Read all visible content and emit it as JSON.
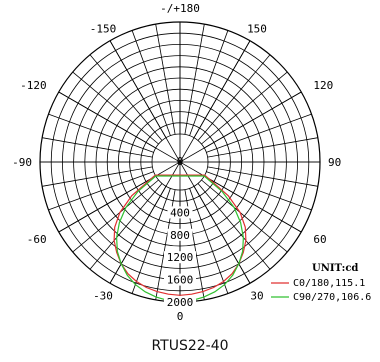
{
  "chart_data": {
    "type": "polar",
    "caption": "RTUS22-40",
    "unit_label": "UNIT:cd",
    "radial_max": 2000,
    "radial_ticks": [
      0,
      400,
      800,
      1200,
      1600,
      2000
    ],
    "angle_ticks": [
      {
        "angle": 180,
        "label": "-/+180"
      },
      {
        "angle": -150,
        "label": "-150"
      },
      {
        "angle": 150,
        "label": "150"
      },
      {
        "angle": -120,
        "label": "-120"
      },
      {
        "angle": 120,
        "label": "120"
      },
      {
        "angle": -90,
        "label": "-90"
      },
      {
        "angle": 90,
        "label": "90"
      },
      {
        "angle": -60,
        "label": "-60"
      },
      {
        "angle": 60,
        "label": "60"
      },
      {
        "angle": -30,
        "label": "-30"
      },
      {
        "angle": 30,
        "label": "30"
      },
      {
        "angle": 0,
        "label": "0"
      }
    ],
    "series": [
      {
        "name": "C0/180,115.1",
        "color": "#e03030",
        "angles": [
          -62,
          -55,
          -50,
          -45,
          -40,
          -35,
          -30,
          -25,
          -20,
          -15,
          -10,
          -5,
          0,
          5,
          10,
          15,
          20,
          25,
          30,
          35,
          40,
          45,
          50,
          55,
          62
        ],
        "values": [
          0,
          550,
          900,
          1150,
          1330,
          1470,
          1600,
          1700,
          1770,
          1820,
          1850,
          1870,
          1880,
          1870,
          1850,
          1820,
          1770,
          1700,
          1600,
          1470,
          1330,
          1150,
          900,
          550,
          0
        ]
      },
      {
        "name": "C90/270,106.6",
        "color": "#30c030",
        "angles": [
          -60,
          -55,
          -50,
          -45,
          -40,
          -35,
          -30,
          -25,
          -20,
          -15,
          -10,
          -5,
          0,
          5,
          10,
          15,
          20,
          25,
          30,
          35,
          40,
          45,
          50,
          55,
          60
        ],
        "values": [
          0,
          420,
          760,
          1030,
          1260,
          1450,
          1600,
          1730,
          1830,
          1900,
          1950,
          1980,
          1990,
          1980,
          1950,
          1900,
          1830,
          1730,
          1600,
          1450,
          1260,
          1030,
          760,
          420,
          0
        ]
      }
    ]
  }
}
